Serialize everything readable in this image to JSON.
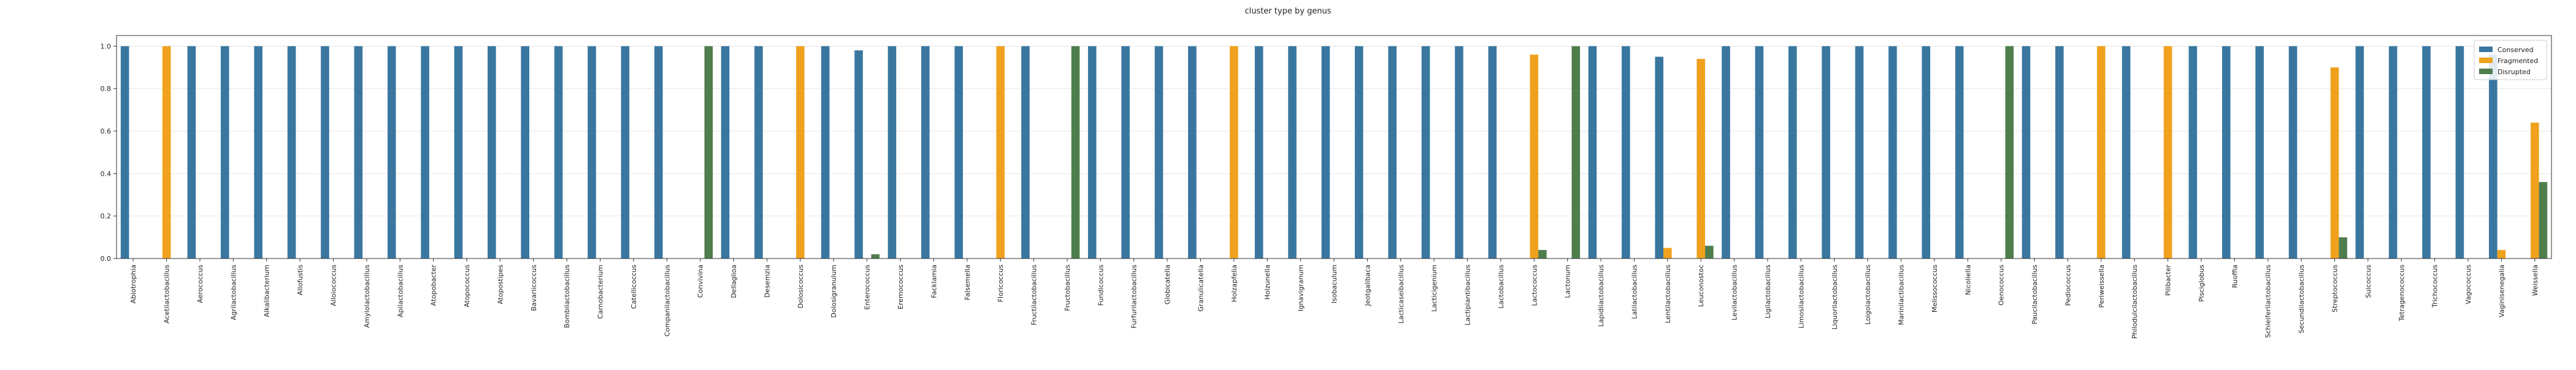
{
  "chart_data": {
    "type": "bar",
    "title": "cluster type by genus",
    "xlabel": "",
    "ylabel": "",
    "ylim": [
      0,
      1.05
    ],
    "yticks": [
      "0.0",
      "0.2",
      "0.4",
      "0.6",
      "0.8",
      "1.0"
    ],
    "grid": "horizontal",
    "legend_position": "top-right",
    "categories": [
      "Abiotrophia",
      "Acetilactobacillus",
      "Aerococcus",
      "Agrilactobacillus",
      "Alkalibacterium",
      "Allofustis",
      "Alloiococcus",
      "Amylolactobacillus",
      "Apilactobacillus",
      "Atopobacter",
      "Atopococcus",
      "Atopostipes",
      "Bavariicoccus",
      "Bombilactobacillus",
      "Carnobacterium",
      "Catellicoccus",
      "Companilactobacillus",
      "Convivina",
      "Dellaglioa",
      "Desemzia",
      "Dolosicoccus",
      "Dolosigranulum",
      "Enterococcus",
      "Eremococcus",
      "Facklamia",
      "Falsemella",
      "Floricoccus",
      "Fructilactobacillus",
      "Fructobacillus",
      "Fundicoccus",
      "Furfurilactobacillus",
      "Globicatella",
      "Granulicatella",
      "Holzapfelia",
      "Holzunella",
      "Ignavigranum",
      "Isobaculum",
      "Jeotgalibaca",
      "Lacticaseibacillus",
      "Lacticigenium",
      "Lactiplantibacillus",
      "Lactobacillus",
      "Lactococcus",
      "Lactonum",
      "Lapidilactobacillus",
      "Latilactobacillus",
      "Lentilactobacillus",
      "Leuconostoc",
      "Levilactobacillus",
      "Ligilactobacillus",
      "Limosilactobacillus",
      "Liquorilactobacillus",
      "Loigolactobacillus",
      "Marinilactibacillus",
      "Melissococcus",
      "Nicoliella",
      "Oenococcus",
      "Paucilactobacillus",
      "Pediococcus",
      "Periweissella",
      "Philodulcilactobacillus",
      "Pilibacter",
      "Pisciglobus",
      "Ruoffia",
      "Schleiferilactobacillus",
      "Secundilactobacillus",
      "Streptococcus",
      "Suicoccus",
      "Tetragenococcus",
      "Trichococcus",
      "Vagococcus",
      "Vaginisenegalia",
      "Weissella"
    ],
    "series": [
      {
        "name": "Conserved",
        "color": "#3a77a0",
        "values": [
          1,
          0,
          1,
          1,
          1,
          1,
          1,
          1,
          1,
          1,
          1,
          1,
          1,
          1,
          1,
          1,
          1,
          0,
          1,
          1,
          0,
          1,
          0.98,
          1,
          1,
          1,
          0,
          1,
          0,
          1,
          1,
          1,
          1,
          0,
          1,
          1,
          1,
          1,
          1,
          1,
          1,
          1,
          0,
          0,
          1,
          1,
          0.95,
          0,
          1,
          1,
          1,
          1,
          1,
          1,
          1,
          1,
          0,
          1,
          1,
          0,
          1,
          0,
          1,
          1,
          1,
          1,
          0,
          1,
          1,
          1,
          1,
          0.96,
          0
        ]
      },
      {
        "name": "Fragmented",
        "color": "#f0a21e",
        "values": [
          0,
          1,
          0,
          0,
          0,
          0,
          0,
          0,
          0,
          0,
          0,
          0,
          0,
          0,
          0,
          0,
          0,
          0,
          0,
          0,
          1,
          0,
          0,
          0,
          0,
          0,
          1,
          0,
          0,
          0,
          0,
          0,
          0,
          1,
          0,
          0,
          0,
          0,
          0,
          0,
          0,
          0,
          0.96,
          0,
          0,
          0,
          0.05,
          0.94,
          0,
          0,
          0,
          0,
          0,
          0,
          0,
          0,
          0,
          0,
          0,
          1,
          0,
          1,
          0,
          0,
          0,
          0,
          0.9,
          0,
          0,
          0,
          0,
          0.04,
          0.64
        ]
      },
      {
        "name": "Disrupted",
        "color": "#4f7e4d",
        "values": [
          0,
          0,
          0,
          0,
          0,
          0,
          0,
          0,
          0,
          0,
          0,
          0,
          0,
          0,
          0,
          0,
          0,
          1,
          0,
          0,
          0,
          0,
          0.02,
          0,
          0,
          0,
          0,
          0,
          1,
          0,
          0,
          0,
          0,
          0,
          0,
          0,
          0,
          0,
          0,
          0,
          0,
          0,
          0.04,
          1,
          0,
          0,
          0,
          0.06,
          0,
          0,
          0,
          0,
          0,
          0,
          0,
          0,
          1,
          0,
          0,
          0,
          0,
          0,
          0,
          0,
          0,
          0,
          0.1,
          0,
          0,
          0,
          0,
          0,
          0.36
        ]
      }
    ]
  }
}
